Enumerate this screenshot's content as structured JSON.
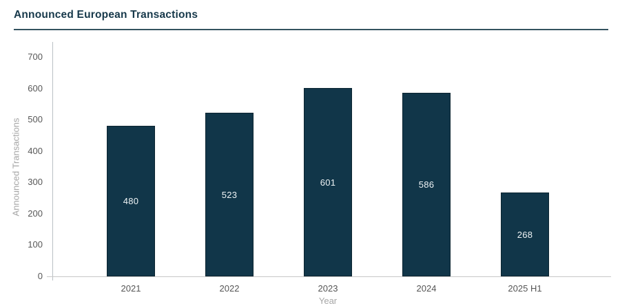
{
  "title": "Announced European Transactions",
  "chart_data": {
    "type": "bar",
    "title": "Announced European Transactions",
    "categories": [
      "2021",
      "2022",
      "2023",
      "2024",
      "2025 H1"
    ],
    "values": [
      480,
      523,
      601,
      586,
      268
    ],
    "xlabel": "Year",
    "ylabel": "Announced Transactions",
    "ylim": [
      0,
      700
    ],
    "yticks": [
      0,
      100,
      200,
      300,
      400,
      500,
      600,
      700
    ],
    "grid": false,
    "legend": "none",
    "data_labels": "inside-center",
    "colors": {
      "bar_fill": "#113649",
      "bar_border": "#0b2430",
      "bar_label": "#eff4f6",
      "title_text": "#16384a",
      "title_rule": "#33525f",
      "tick_text": "#575757",
      "axis_label_text": "#a6a6a6",
      "axis_line": "#c7c7c7"
    }
  }
}
